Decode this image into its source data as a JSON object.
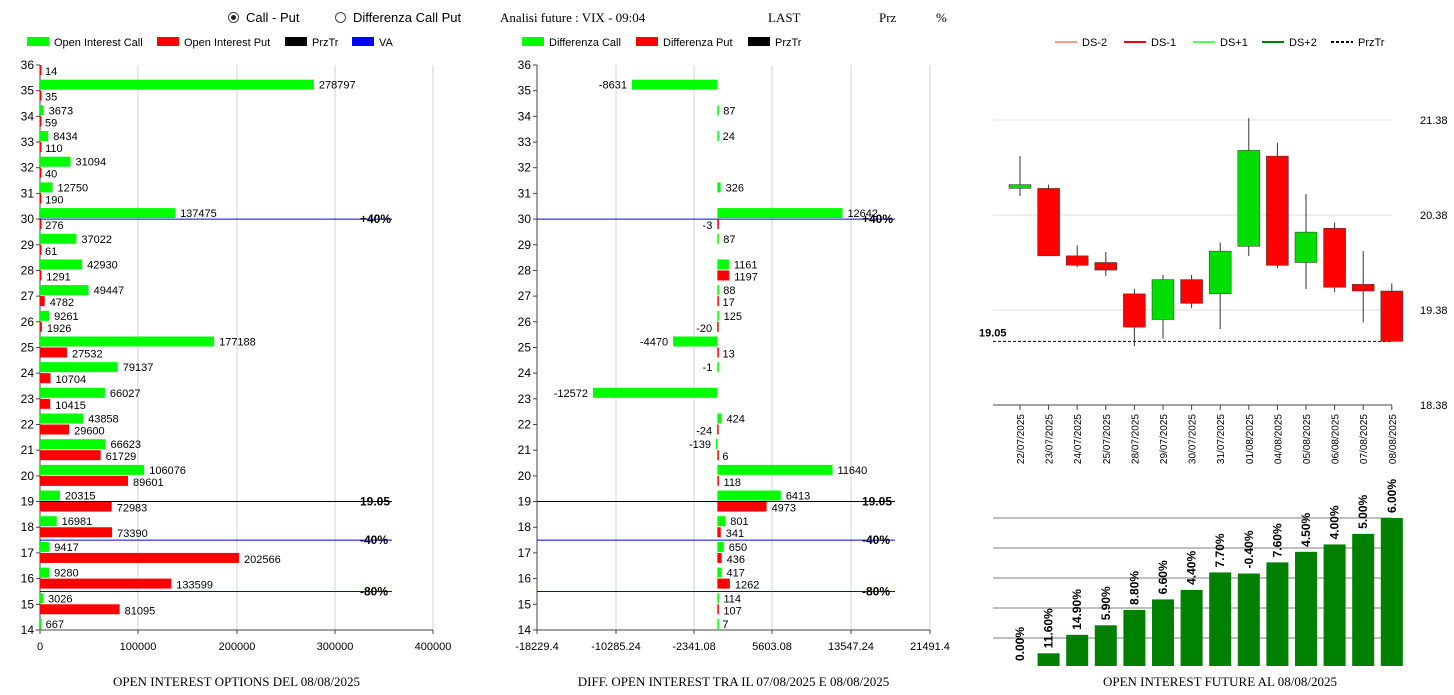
{
  "header": {
    "radio_options": [
      {
        "label": "Call - Put",
        "selected": true
      },
      {
        "label": "Differenza Call Put",
        "selected": false
      }
    ],
    "title": "Analisi future : VIX - 09:04",
    "last_label": "LAST",
    "prz_label": "Prz",
    "pct_label": "%"
  },
  "colors": {
    "call": "#00ff00",
    "put": "#ff0000",
    "przTr": "#000000",
    "va": "#0000ff",
    "bull": "#00dd00",
    "bear": "#ff0000",
    "future_bar": "#008000"
  },
  "chart_data": [
    {
      "type": "bar",
      "orientation": "horizontal",
      "title": "OPEN INTEREST OPTIONS DEL 08/08/2025",
      "legend": [
        "Open Interest Call",
        "Open Interest Put",
        "PrzTr",
        "VA"
      ],
      "legend_placement": "top",
      "categories": [
        36,
        35,
        34,
        33,
        32,
        31,
        30,
        29,
        28,
        27,
        26,
        25,
        24,
        23,
        22,
        21,
        20,
        19,
        18,
        17,
        16,
        15,
        14
      ],
      "series": [
        {
          "name": "Open Interest Call",
          "values": [
            null,
            278797,
            3673,
            8434,
            31094,
            12750,
            137475,
            37022,
            42930,
            49447,
            9261,
            177188,
            79137,
            66027,
            43858,
            66623,
            106076,
            20315,
            16981,
            9417,
            9280,
            3026,
            667
          ]
        },
        {
          "name": "Open Interest Put",
          "values": [
            14,
            35,
            59,
            110,
            40,
            190,
            276,
            61,
            1291,
            4782,
            1926,
            27532,
            10704,
            10415,
            29600,
            61729,
            89601,
            72983,
            73390,
            202566,
            133599,
            81095,
            null
          ]
        }
      ],
      "reference_lines": [
        {
          "strike": 30,
          "label": "+40%"
        },
        {
          "strike": 19,
          "label": "19.05"
        },
        {
          "strike": 17.5,
          "label": "-40%"
        },
        {
          "strike": 15.5,
          "label": "-80%"
        }
      ],
      "xlim": [
        0,
        400000
      ],
      "xticks": [
        "0",
        "100000",
        "200000",
        "300000",
        "400000"
      ],
      "grid": true
    },
    {
      "type": "bar",
      "orientation": "horizontal",
      "title": "DIFF. OPEN INTEREST TRA IL 07/08/2025 E 08/08/2025",
      "legend": [
        "Differenza Call",
        "Differenza Put",
        "PrzTr"
      ],
      "legend_placement": "top",
      "categories": [
        36,
        35,
        34,
        33,
        32,
        31,
        30,
        29,
        28,
        27,
        26,
        25,
        24,
        23,
        22,
        21,
        20,
        19,
        18,
        17,
        16,
        15,
        14
      ],
      "series": [
        {
          "name": "Differenza Call",
          "values": [
            null,
            -8631,
            87,
            24,
            null,
            326,
            12642,
            87,
            1161,
            88,
            125,
            -4470,
            -1,
            -12572,
            424,
            -139,
            11640,
            6413,
            801,
            650,
            417,
            114,
            7
          ]
        },
        {
          "name": "Differenza Put",
          "values": [
            null,
            null,
            null,
            null,
            null,
            null,
            -3,
            null,
            1197,
            17,
            -20,
            13,
            null,
            null,
            -24,
            6,
            118,
            4973,
            341,
            436,
            1262,
            107,
            null
          ]
        }
      ],
      "reference_lines": [
        {
          "strike": 30,
          "label": "+40%"
        },
        {
          "strike": 19,
          "label": "19.05"
        },
        {
          "strike": 17.5,
          "label": "-40%"
        },
        {
          "strike": 15.5,
          "label": "-80%"
        }
      ],
      "xlim": [
        -18229.4,
        21491.4
      ],
      "xticks": [
        "-18229.4",
        "-10285.24",
        "-2341.08",
        "5603.08",
        "13547.24",
        "21491.4"
      ],
      "grid": true
    },
    {
      "type": "candlestick",
      "legend": [
        "DS-2",
        "DS-1",
        "DS+1",
        "DS+2",
        "PrzTr"
      ],
      "legend_placement": "top",
      "categories": [
        "22/07/2025",
        "23/07/2025",
        "24/07/2025",
        "25/07/2025",
        "28/07/2025",
        "29/07/2025",
        "30/07/2025",
        "31/07/2025",
        "01/08/2025",
        "04/08/2025",
        "05/08/2025",
        "06/08/2025",
        "07/08/2025",
        "08/08/2025"
      ],
      "open": [
        20.66,
        20.66,
        19.95,
        19.88,
        19.55,
        19.28,
        19.7,
        19.55,
        20.05,
        21.0,
        19.88,
        20.24,
        19.65,
        19.58
      ],
      "close": [
        20.7,
        19.95,
        19.85,
        19.8,
        19.2,
        19.7,
        19.45,
        20.0,
        21.06,
        19.85,
        20.2,
        19.62,
        19.58,
        19.05
      ],
      "high": [
        21.0,
        20.7,
        20.06,
        19.99,
        19.6,
        19.75,
        19.75,
        20.09,
        21.4,
        21.14,
        20.6,
        20.3,
        20.0,
        19.66
      ],
      "low": [
        20.58,
        19.95,
        19.83,
        19.74,
        19.0,
        19.08,
        19.4,
        19.18,
        19.95,
        19.82,
        19.6,
        19.57,
        19.25,
        19.05
      ],
      "przTr": 19.05,
      "przTr_label": "19.05",
      "ylim": [
        18.38,
        21.68
      ],
      "yticks": [
        "21.38",
        "20.38",
        "19.38",
        "18.38"
      ]
    },
    {
      "type": "bar",
      "title": "OPEN INTEREST FUTURE AL 08/08/2025",
      "categories": [
        "22/07/2025",
        "23/07/2025",
        "24/07/2025",
        "25/07/2025",
        "28/07/2025",
        "29/07/2025",
        "30/07/2025",
        "31/07/2025",
        "01/08/2025",
        "04/08/2025",
        "05/08/2025",
        "06/08/2025",
        "07/08/2025",
        "08/08/2025"
      ],
      "values": [
        0,
        2.4,
        5.9,
        7.7,
        10.6,
        12.6,
        14.4,
        17.7,
        17.5,
        19.6,
        21.6,
        23.0,
        25.0,
        28.0
      ],
      "labels": [
        "0.00%",
        "11.60%",
        "14.90%",
        "5.90%",
        "8.80%",
        "6.60%",
        "4.40%",
        "7.70%",
        "-0.40%",
        "7.60%",
        "4.50%",
        "4.00%",
        "5.00%",
        "6.00%"
      ],
      "ylim": [
        0,
        28
      ]
    }
  ]
}
